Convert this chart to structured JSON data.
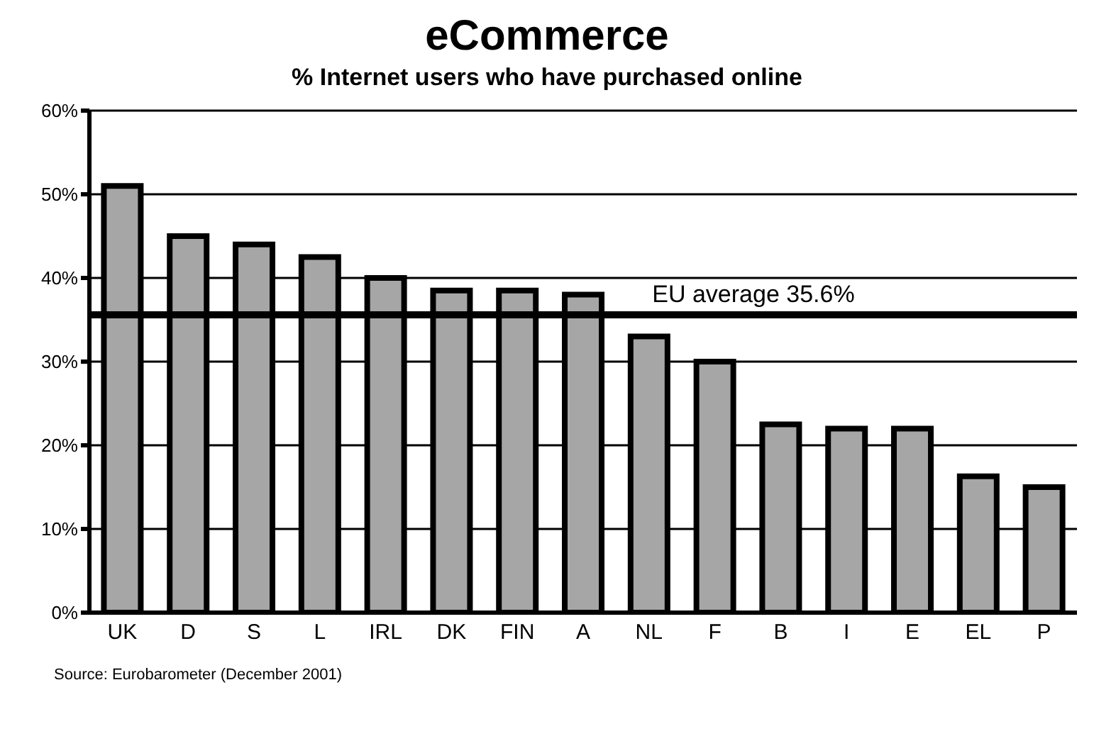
{
  "chart_data": {
    "type": "bar",
    "title": "eCommerce",
    "subtitle": "% Internet users who have purchased online",
    "categories": [
      "UK",
      "D",
      "S",
      "L",
      "IRL",
      "DK",
      "FIN",
      "A",
      "NL",
      "F",
      "B",
      "I",
      "E",
      "EL",
      "P"
    ],
    "values": [
      51,
      45,
      44,
      42.5,
      40,
      38.5,
      38.5,
      38,
      33,
      30,
      22.5,
      22,
      22,
      16.3,
      15
    ],
    "color": "#a6a6a6",
    "ylim": [
      0,
      60
    ],
    "yticks": [
      {
        "value": 0,
        "label": "0%"
      },
      {
        "value": 10,
        "label": "10%"
      },
      {
        "value": 20,
        "label": "20%"
      },
      {
        "value": 30,
        "label": "30%"
      },
      {
        "value": 40,
        "label": "40%"
      },
      {
        "value": 50,
        "label": "50%"
      },
      {
        "value": 60,
        "label": "60%"
      }
    ],
    "grid": "y",
    "ref_lines": [
      {
        "axis": "y",
        "value": 35.6,
        "label": "EU average 35.6%",
        "color": "#000000"
      }
    ],
    "annotations": [
      "Source: Eurobarometer (December 2001)"
    ]
  }
}
